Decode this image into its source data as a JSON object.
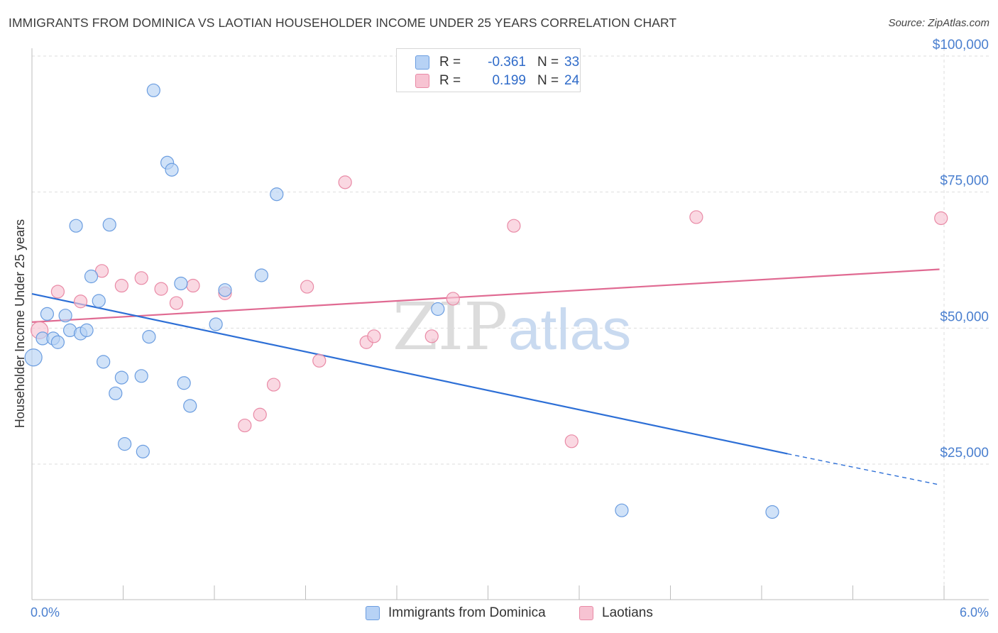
{
  "title": "IMMIGRANTS FROM DOMINICA VS LAOTIAN HOUSEHOLDER INCOME UNDER 25 YEARS CORRELATION CHART",
  "source": "Source: ZipAtlas.com",
  "watermark": {
    "zip": "ZIP",
    "atlas": "atlas"
  },
  "colors": {
    "blue_fill": "#b7d2f5",
    "blue_stroke": "#6b9de0",
    "blue_line": "#2d6fd6",
    "pink_fill": "#f7c3d2",
    "pink_stroke": "#e98aa6",
    "pink_line": "#e06a92",
    "tick_text": "#4a7fcf",
    "grid": "#dddddd"
  },
  "legend_top": {
    "rows": [
      {
        "series": "blue",
        "r_label": "R =",
        "r_value": "-0.361",
        "n_label": "N =",
        "n_value": "33"
      },
      {
        "series": "pink",
        "r_label": "R =",
        "r_value": "0.199",
        "n_label": "N =",
        "n_value": "24"
      }
    ]
  },
  "legend_bottom": [
    {
      "series": "blue",
      "label": "Immigrants from Dominica"
    },
    {
      "series": "pink",
      "label": "Laotians"
    }
  ],
  "chart_data": {
    "type": "scatter",
    "title": "IMMIGRANTS FROM DOMINICA VS LAOTIAN HOUSEHOLDER INCOME UNDER 25 YEARS CORRELATION CHART",
    "xlabel": "",
    "ylabel": "Householder Income Under 25 years",
    "xlim": [
      0,
      6
    ],
    "ylim": [
      0,
      105000
    ],
    "x_tick_labels": [
      {
        "value": 0,
        "label": "0.0%"
      },
      {
        "value": 6,
        "label": "6.0%"
      }
    ],
    "x_minor_ticks": [
      0.6,
      1.2,
      1.8,
      2.4,
      3.0,
      3.6,
      4.2,
      4.8,
      5.4
    ],
    "y_ticks": [
      {
        "value": 25000,
        "label": "$25,000"
      },
      {
        "value": 50000,
        "label": "$50,000"
      },
      {
        "value": 75000,
        "label": "$75,000"
      },
      {
        "value": 100000,
        "label": "$100,000"
      }
    ],
    "grid": true,
    "legend_position": "top-center",
    "series": [
      {
        "name": "Immigrants from Dominica",
        "color": "blue",
        "points": [
          [
            0.01,
            44600
          ],
          [
            0.07,
            48100
          ],
          [
            0.1,
            52600
          ],
          [
            0.14,
            48100
          ],
          [
            0.17,
            47400
          ],
          [
            0.22,
            52300
          ],
          [
            0.25,
            49600
          ],
          [
            0.29,
            68800
          ],
          [
            0.32,
            49000
          ],
          [
            0.36,
            49600
          ],
          [
            0.39,
            59500
          ],
          [
            0.44,
            55000
          ],
          [
            0.47,
            43800
          ],
          [
            0.51,
            69000
          ],
          [
            0.55,
            38000
          ],
          [
            0.59,
            40900
          ],
          [
            0.61,
            28700
          ],
          [
            0.72,
            41200
          ],
          [
            0.73,
            27300
          ],
          [
            0.77,
            48400
          ],
          [
            0.8,
            93700
          ],
          [
            0.89,
            80400
          ],
          [
            0.92,
            79100
          ],
          [
            0.98,
            58200
          ],
          [
            1.0,
            39900
          ],
          [
            1.04,
            35700
          ],
          [
            1.21,
            50700
          ],
          [
            1.27,
            57000
          ],
          [
            1.51,
            59700
          ],
          [
            1.61,
            74600
          ],
          [
            2.67,
            53500
          ],
          [
            3.88,
            16500
          ],
          [
            4.87,
            16200
          ]
        ],
        "trend": {
          "x0": 0.0,
          "y0": 56300,
          "x1": 4.97,
          "y1": 26900,
          "dashed_to_x": 5.97,
          "dashed_to_y": 21200
        }
      },
      {
        "name": "Laotians",
        "color": "pink",
        "points": [
          [
            0.05,
            49600
          ],
          [
            0.17,
            56700
          ],
          [
            0.32,
            54900
          ],
          [
            0.46,
            60500
          ],
          [
            0.59,
            57800
          ],
          [
            0.72,
            59200
          ],
          [
            0.85,
            57200
          ],
          [
            0.95,
            54600
          ],
          [
            1.06,
            57800
          ],
          [
            1.27,
            56400
          ],
          [
            1.4,
            32100
          ],
          [
            1.5,
            34100
          ],
          [
            1.59,
            39600
          ],
          [
            1.81,
            57600
          ],
          [
            1.89,
            44000
          ],
          [
            2.06,
            76800
          ],
          [
            2.2,
            47400
          ],
          [
            2.25,
            48500
          ],
          [
            2.63,
            48500
          ],
          [
            2.77,
            55400
          ],
          [
            3.17,
            68800
          ],
          [
            3.55,
            29200
          ],
          [
            4.37,
            70400
          ],
          [
            5.98,
            70200
          ]
        ],
        "trend": {
          "x0": 0.0,
          "y0": 51100,
          "x1": 5.97,
          "y1": 60800
        }
      }
    ]
  }
}
